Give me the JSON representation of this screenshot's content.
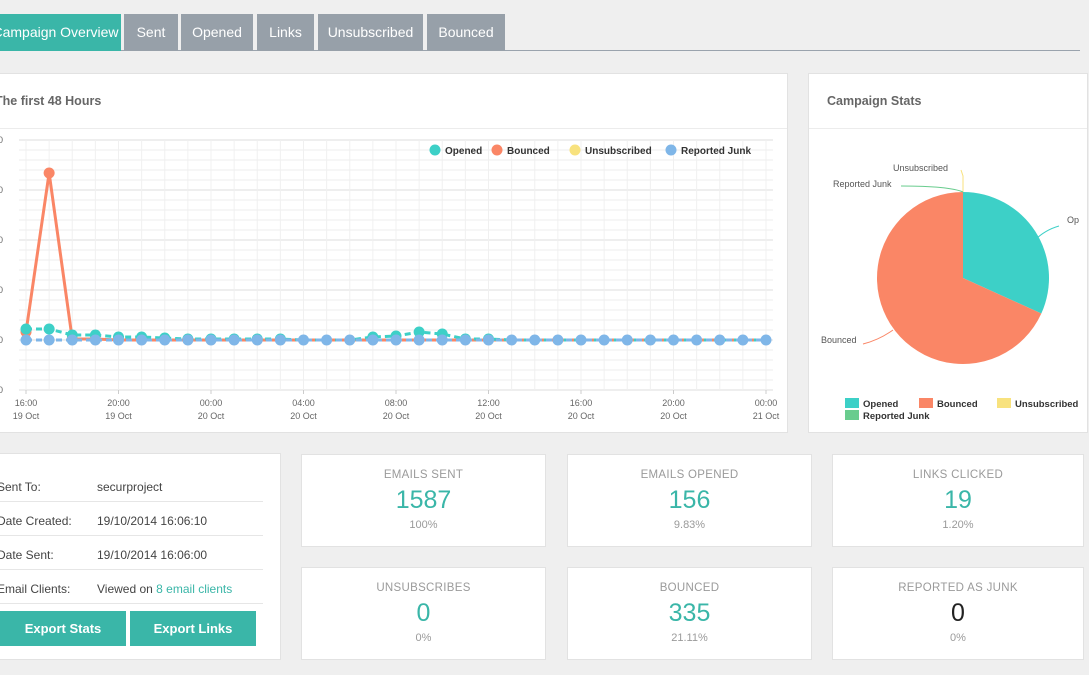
{
  "tabs": [
    {
      "label": "Campaign Overview",
      "active": true
    },
    {
      "label": "Sent"
    },
    {
      "label": "Opened"
    },
    {
      "label": "Links"
    },
    {
      "label": "Unsubscribed"
    },
    {
      "label": "Bounced"
    }
  ],
  "line_panel": {
    "title": "The first 48 Hours"
  },
  "pie_panel": {
    "title": "Campaign Stats"
  },
  "info": {
    "sent_to_label": "Sent To:",
    "sent_to_value": "securproject",
    "date_created_label": "Date Created:",
    "date_created_value": "19/10/2014 16:06:10",
    "date_sent_label": "Date Sent:",
    "date_sent_value": "19/10/2014 16:06:00",
    "clients_label": "Email Clients:",
    "clients_prefix": "Viewed on",
    "clients_link": "8 email clients"
  },
  "buttons": {
    "export_stats": "Export Stats",
    "export_links": "Export Links"
  },
  "stats": [
    {
      "label": "EMAILS SENT",
      "value": "1587",
      "pct": "100%"
    },
    {
      "label": "EMAILS OPENED",
      "value": "156",
      "pct": "9.83%"
    },
    {
      "label": "LINKS CLICKED",
      "value": "19",
      "pct": "1.20%"
    },
    {
      "label": "UNSUBSCRIBES",
      "value": "0",
      "pct": "0%"
    },
    {
      "label": "BOUNCED",
      "value": "335",
      "pct": "21.11%"
    },
    {
      "label": "REPORTED AS JUNK",
      "value": "0",
      "pct": "0%"
    }
  ],
  "colors": {
    "opened": "#3dd0c7",
    "bounced": "#fa8666",
    "unsubscribed": "#f8e27e",
    "reported_junk": "#7fb6e8",
    "pie_legend_junk": "#69cc8e",
    "accent": "#3ab6a8"
  },
  "chart_data": [
    {
      "type": "line",
      "title": "The first 48 Hours",
      "xlabel": "",
      "ylabel": "",
      "x": [
        "16:00",
        "17:00",
        "18:00",
        "19:00",
        "20:00",
        "21:00",
        "22:00",
        "23:00",
        "00:00",
        "01:00",
        "02:00",
        "03:00",
        "04:00",
        "05:00",
        "06:00",
        "07:00",
        "08:00",
        "09:00",
        "10:00",
        "11:00",
        "12:00",
        "13:00",
        "14:00",
        "15:00",
        "16:00",
        "17:00",
        "18:00",
        "19:00",
        "20:00",
        "21:00",
        "22:00",
        "23:00",
        "00:00"
      ],
      "x_ticks": [
        {
          "time": "16:00",
          "date": "19 Oct"
        },
        {
          "time": "20:00",
          "date": "19 Oct"
        },
        {
          "time": "00:00",
          "date": "20 Oct"
        },
        {
          "time": "04:00",
          "date": "20 Oct"
        },
        {
          "time": "08:00",
          "date": "20 Oct"
        },
        {
          "time": "12:00",
          "date": "20 Oct"
        },
        {
          "time": "16:00",
          "date": "20 Oct"
        },
        {
          "time": "20:00",
          "date": "20 Oct"
        },
        {
          "time": "00:00",
          "date": "21 Oct"
        }
      ],
      "y_ticks": [
        "0",
        "0",
        "0",
        "0",
        "0",
        "0"
      ],
      "ylim": [
        -50,
        200
      ],
      "legend_position": "top-right",
      "grid": true,
      "series": [
        {
          "name": "Opened",
          "values": [
            11,
            11,
            5,
            5,
            3,
            3,
            2,
            1,
            1,
            1,
            1,
            1,
            0,
            0,
            0,
            3,
            4,
            8,
            6,
            1,
            1,
            0,
            0,
            0,
            0,
            0,
            0,
            0,
            0,
            0,
            0,
            0,
            0
          ]
        },
        {
          "name": "Bounced",
          "values": [
            8,
            167,
            1,
            1,
            0,
            0,
            0,
            0,
            0,
            0,
            0,
            0,
            0,
            0,
            0,
            0,
            0,
            0,
            0,
            0,
            0,
            0,
            0,
            0,
            0,
            0,
            0,
            0,
            0,
            0,
            0,
            0,
            0
          ]
        },
        {
          "name": "Unsubscribed",
          "values": [
            0,
            0,
            0,
            0,
            0,
            0,
            0,
            0,
            0,
            0,
            0,
            0,
            0,
            0,
            0,
            0,
            0,
            0,
            0,
            0,
            0,
            0,
            0,
            0,
            0,
            0,
            0,
            0,
            0,
            0,
            0,
            0,
            0
          ]
        },
        {
          "name": "Reported Junk",
          "values": [
            0,
            0,
            0,
            0,
            0,
            0,
            0,
            0,
            0,
            0,
            0,
            0,
            0,
            0,
            0,
            0,
            0,
            0,
            0,
            0,
            0,
            0,
            0,
            0,
            0,
            0,
            0,
            0,
            0,
            0,
            0,
            0,
            0
          ]
        }
      ]
    },
    {
      "type": "pie",
      "title": "Campaign Stats",
      "legend_position": "bottom",
      "slices": [
        {
          "name": "Opened",
          "value": 156
        },
        {
          "name": "Bounced",
          "value": 335
        },
        {
          "name": "Unsubscribed",
          "value": 0
        },
        {
          "name": "Reported Junk",
          "value": 0
        }
      ],
      "callout_labels": {
        "opened": "Op",
        "bounced": "Bounced",
        "unsubscribed": "Unsubscribed",
        "reported_junk": "Reported Junk"
      },
      "legend": [
        "Opened",
        "Bounced",
        "Unsubscribed",
        "Reported Junk"
      ]
    }
  ]
}
